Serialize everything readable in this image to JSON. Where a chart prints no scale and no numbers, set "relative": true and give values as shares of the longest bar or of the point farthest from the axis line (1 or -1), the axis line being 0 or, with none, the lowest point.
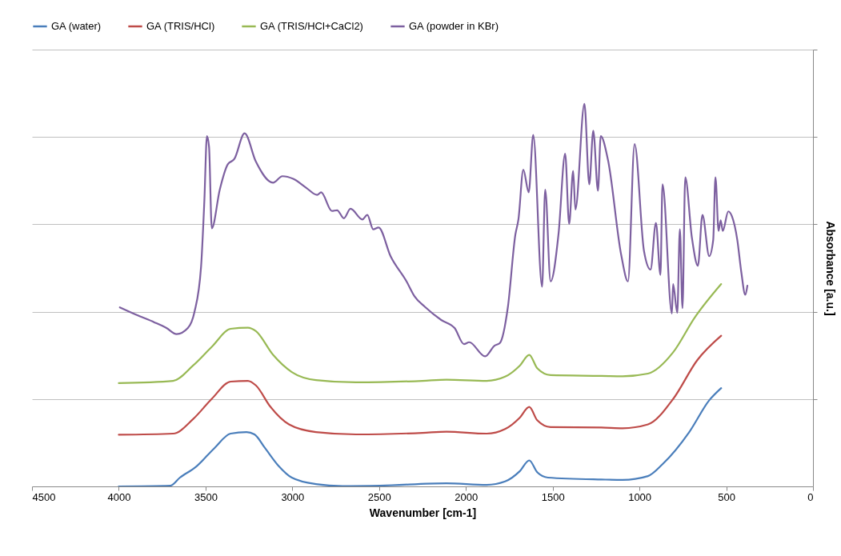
{
  "chart_data": {
    "type": "line",
    "xlabel": "Wavenumber [cm-1]",
    "ylabel": "Absorbance [a.u.]",
    "xlim": [
      4500,
      0
    ],
    "xticks": [
      4500,
      4000,
      3500,
      3000,
      2500,
      2000,
      1500,
      1000,
      500,
      0
    ],
    "relative": true,
    "grid": "y",
    "legend": "top",
    "marker": "none",
    "line_style": "solid",
    "series": [
      {
        "name": "GA (water)",
        "color": "#4a7ebb",
        "x": [
          4000,
          3702,
          3648,
          3556,
          3449,
          3356,
          3264,
          3218,
          3157,
          3080,
          3003,
          2864,
          2711,
          2496,
          2112,
          1881,
          1774,
          1689,
          1635,
          1589,
          1527,
          1220,
          1097,
          951,
          867,
          713,
          598,
          529
        ],
        "values": [
          0.0,
          0.002,
          0.023,
          0.051,
          0.1,
          0.138,
          0.142,
          0.136,
          0.1,
          0.054,
          0.023,
          0.006,
          0.001,
          0.002,
          0.008,
          0.004,
          0.013,
          0.04,
          0.068,
          0.037,
          0.023,
          0.018,
          0.017,
          0.027,
          0.058,
          0.142,
          0.225,
          0.257
        ]
      },
      {
        "name": "GA (TRIS/HCl)",
        "color": "#be4b48",
        "x": [
          4000,
          3687,
          3572,
          3464,
          3356,
          3256,
          3210,
          3126,
          3019,
          2864,
          2634,
          2250,
          2112,
          1881,
          1774,
          1689,
          1635,
          1589,
          1512,
          1220,
          1097,
          951,
          805,
          667,
          529
        ],
        "values": [
          0.135,
          0.138,
          0.176,
          0.229,
          0.274,
          0.276,
          0.264,
          0.208,
          0.162,
          0.142,
          0.136,
          0.14,
          0.143,
          0.138,
          0.15,
          0.18,
          0.208,
          0.173,
          0.155,
          0.154,
          0.152,
          0.162,
          0.229,
          0.33,
          0.394
        ]
      },
      {
        "name": "GA (TRIS/HCl+CaCl2)",
        "color": "#98b954",
        "x": [
          4000,
          3687,
          3572,
          3464,
          3356,
          3256,
          3210,
          3111,
          3003,
          2864,
          2634,
          2250,
          2112,
          1881,
          1774,
          1689,
          1635,
          1589,
          1512,
          1220,
          1097,
          951,
          805,
          682,
          529
        ],
        "values": [
          0.27,
          0.276,
          0.316,
          0.365,
          0.412,
          0.415,
          0.406,
          0.344,
          0.299,
          0.278,
          0.272,
          0.276,
          0.279,
          0.276,
          0.287,
          0.316,
          0.344,
          0.309,
          0.291,
          0.289,
          0.288,
          0.295,
          0.351,
          0.441,
          0.529
        ]
      },
      {
        "name": "GA (powder in KBr)",
        "color": "#7d60a0",
        "x": [
          3994,
          3896,
          3795,
          3725,
          3667,
          3602,
          3564,
          3526,
          3507,
          3492,
          3480,
          3464,
          3418,
          3372,
          3334,
          3275,
          3210,
          3111,
          3057,
          2995,
          2918,
          2857,
          2834,
          2772,
          2742,
          2703,
          2665,
          2596,
          2568,
          2534,
          2503,
          2434,
          2342,
          2296,
          2235,
          2142,
          2065,
          2011,
          1981,
          1889,
          1835,
          1804,
          1758,
          1715,
          1697,
          1669,
          1638,
          1612,
          1561,
          1543,
          1512,
          1466,
          1428,
          1405,
          1382,
          1369,
          1317,
          1289,
          1266,
          1239,
          1223,
          1181,
          1105,
          1066,
          1028,
          974,
          936,
          905,
          879,
          867,
          813,
          806,
          782,
          767,
          752,
          736,
          698,
          663,
          637,
          598,
          575,
          562,
          544,
          532,
          520,
          488,
          467,
          436,
          413,
          390,
          378
        ],
        "values": [
          0.468,
          0.448,
          0.429,
          0.414,
          0.398,
          0.414,
          0.456,
          0.574,
          0.746,
          0.916,
          0.888,
          0.675,
          0.776,
          0.842,
          0.856,
          0.923,
          0.849,
          0.794,
          0.811,
          0.804,
          0.78,
          0.762,
          0.769,
          0.72,
          0.722,
          0.701,
          0.726,
          0.698,
          0.71,
          0.672,
          0.677,
          0.602,
          0.536,
          0.497,
          0.469,
          0.435,
          0.414,
          0.372,
          0.377,
          0.34,
          0.368,
          0.375,
          0.469,
          0.658,
          0.699,
          0.828,
          0.769,
          0.919,
          0.522,
          0.776,
          0.536,
          0.661,
          0.87,
          0.686,
          0.825,
          0.724,
          1.0,
          0.79,
          0.93,
          0.773,
          0.916,
          0.853,
          0.605,
          0.536,
          0.895,
          0.616,
          0.567,
          0.689,
          0.553,
          0.79,
          0.452,
          0.529,
          0.454,
          0.672,
          0.466,
          0.808,
          0.651,
          0.577,
          0.71,
          0.602,
          0.644,
          0.808,
          0.668,
          0.696,
          0.668,
          0.719,
          0.706,
          0.644,
          0.56,
          0.501,
          0.525
        ]
      }
    ]
  }
}
